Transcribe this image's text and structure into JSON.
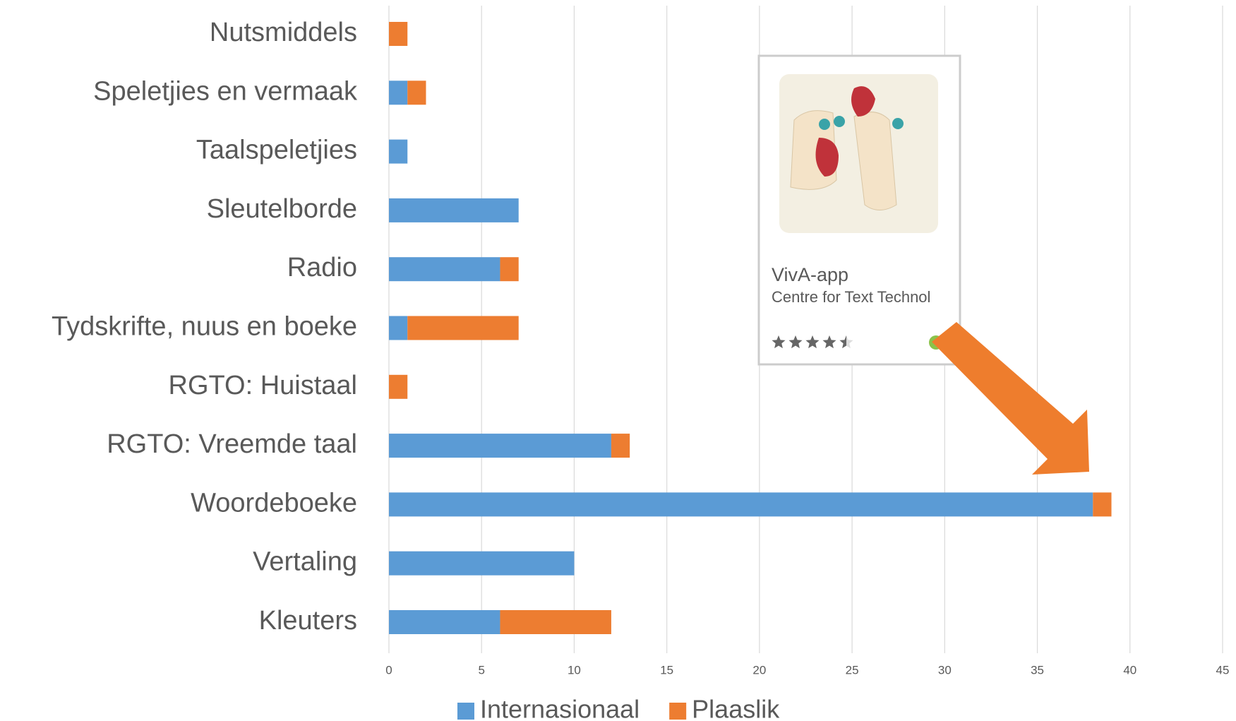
{
  "chart_data": {
    "type": "stacked-barh",
    "categories": [
      "Nutsmiddels",
      "Speletjies en vermaak",
      "Taalspeletjies",
      "Sleutelborde",
      "Radio",
      "Tydskrifte, nuus en boeke",
      "RGTO: Huistaal",
      "RGTO: Vreemde taal",
      "Woordeboeke",
      "Vertaling",
      "Kleuters"
    ],
    "series": [
      {
        "name": "Internasionaal",
        "color": "#5b9bd5",
        "values": [
          0,
          1,
          1,
          7,
          6,
          1,
          0,
          12,
          38,
          10,
          6
        ]
      },
      {
        "name": "Plaaslik",
        "color": "#ed7d31",
        "values": [
          1,
          1,
          0,
          0,
          1,
          6,
          1,
          1,
          1,
          0,
          6
        ]
      }
    ],
    "xlim": [
      0,
      45
    ],
    "xticks": [
      0,
      5,
      10,
      15,
      20,
      25,
      30,
      35,
      40,
      45
    ],
    "grid": true,
    "legend": "bottom",
    "inset": {
      "title": "VivA-app",
      "subtitle": "Centre for Text Technol",
      "rating": 4.5
    }
  }
}
